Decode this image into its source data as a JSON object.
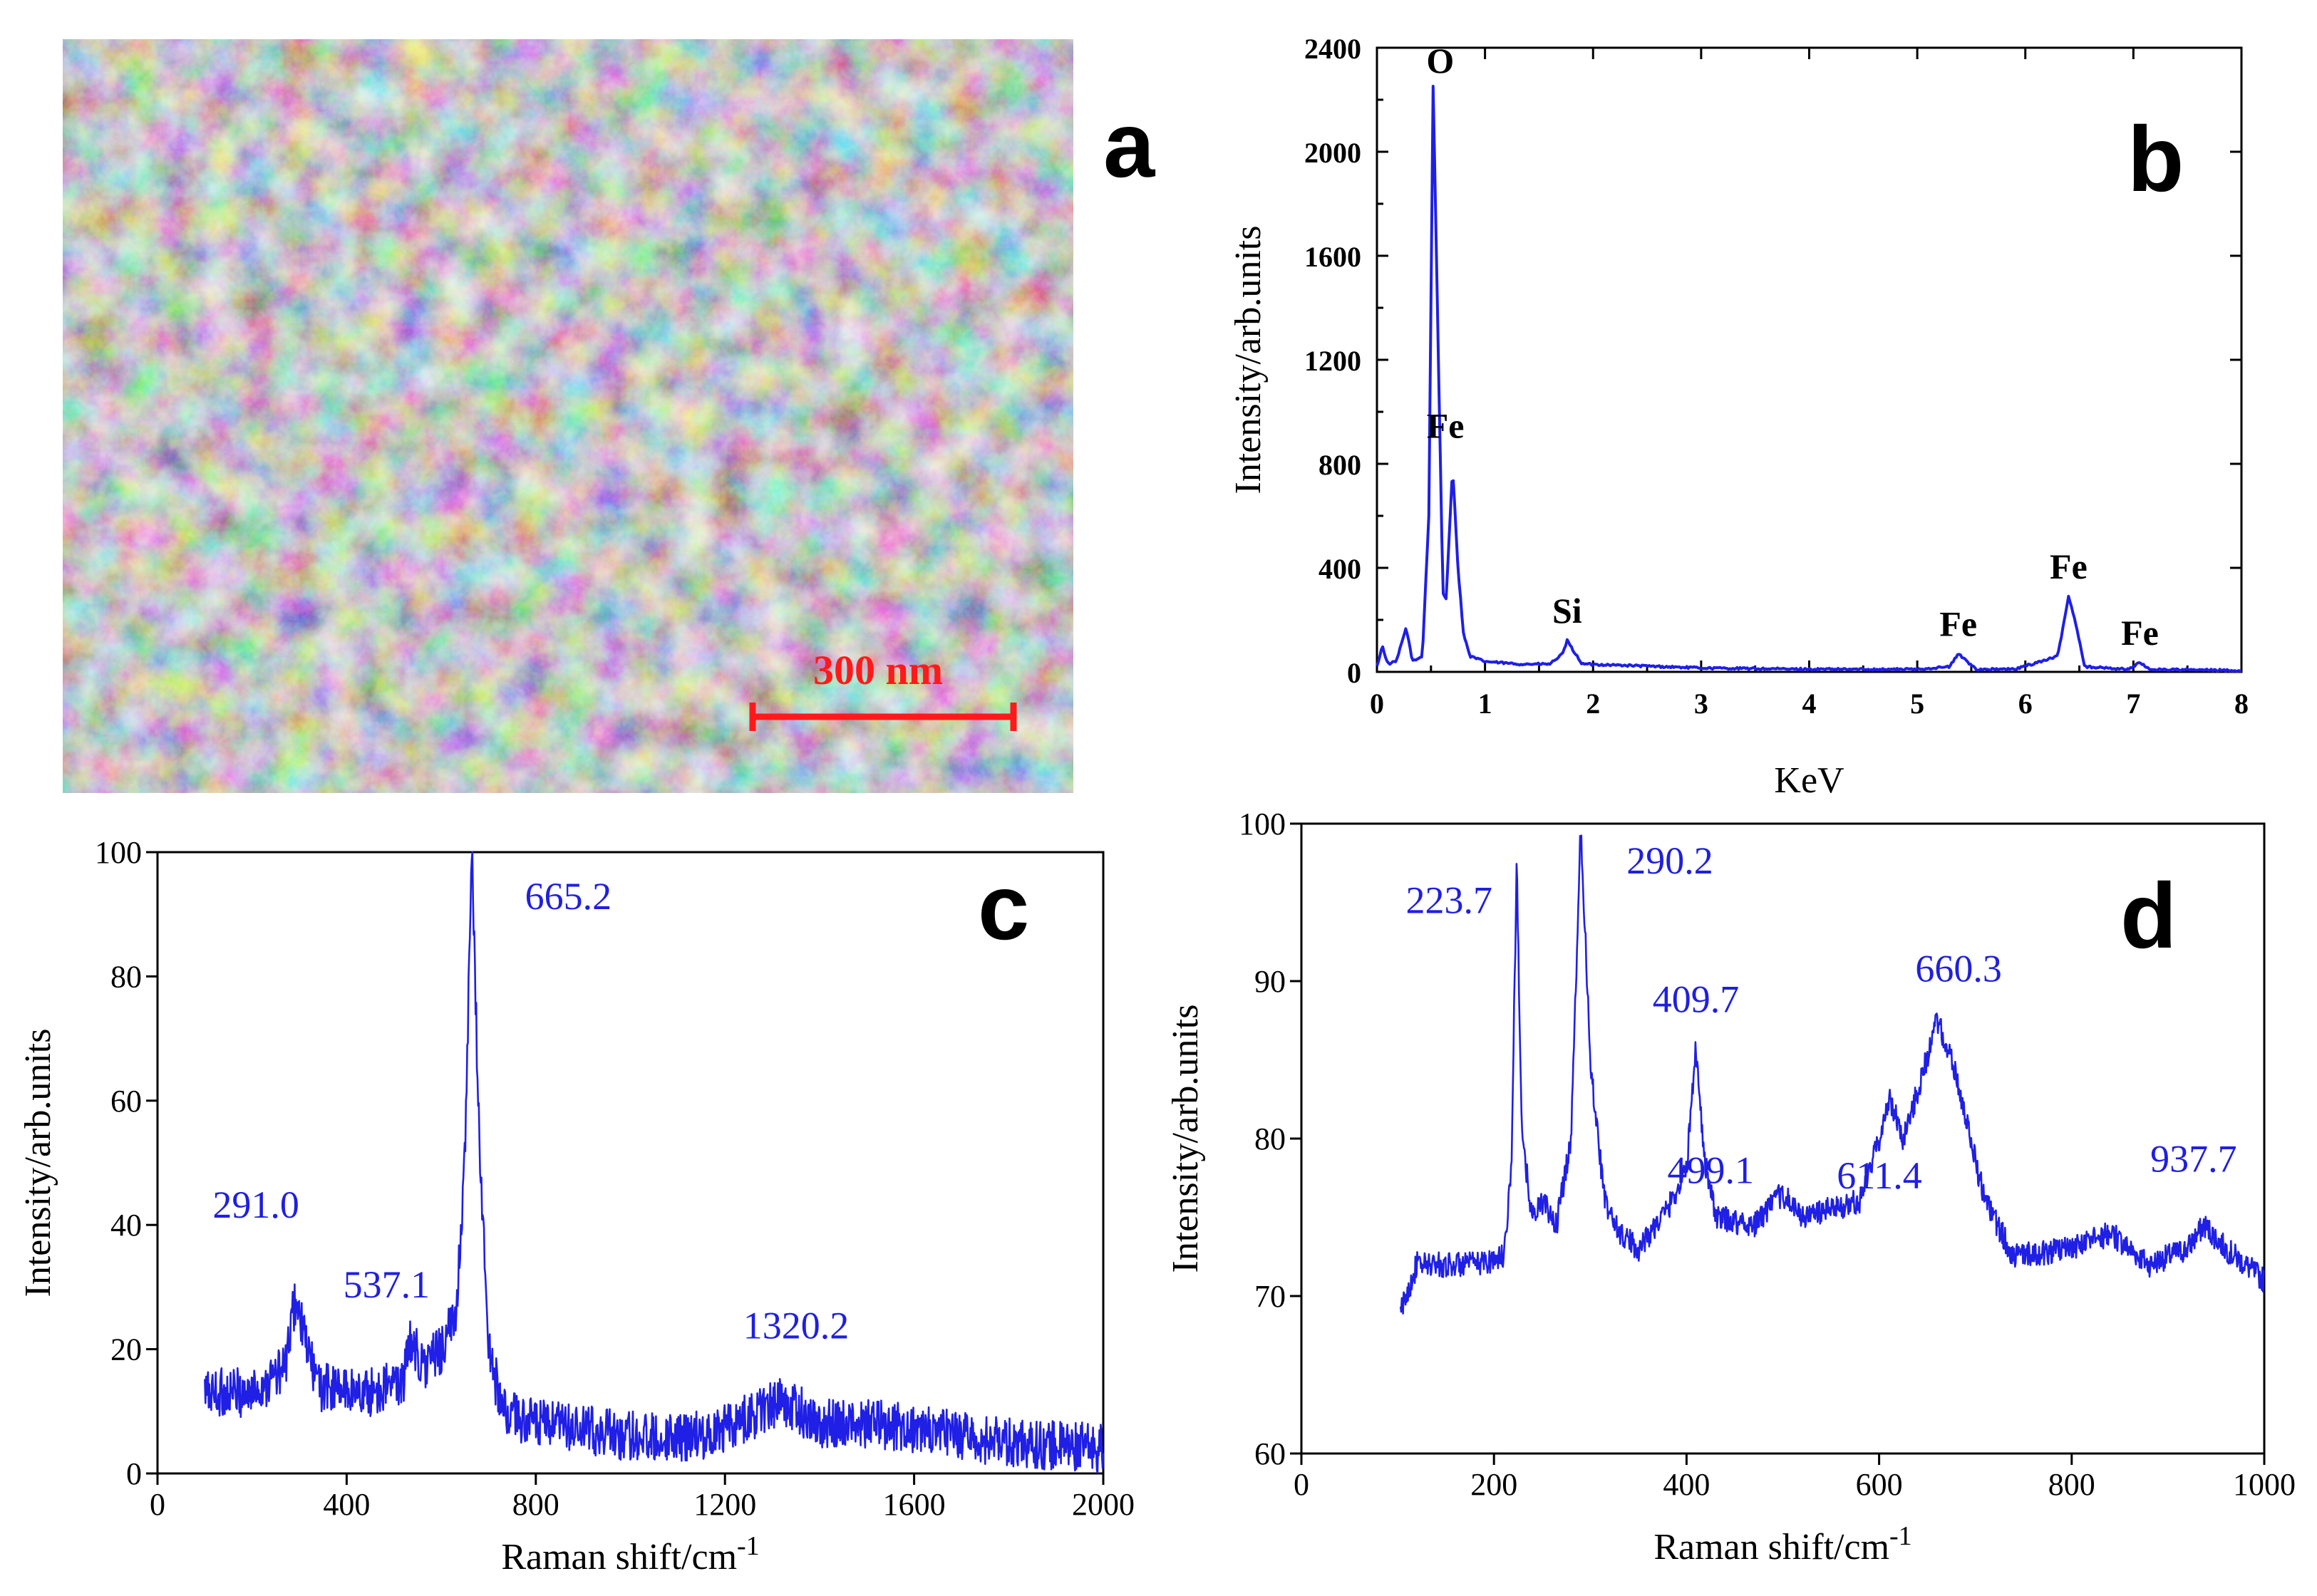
{
  "panels": {
    "a": {
      "letter": "a",
      "scale_bar": "300 nm"
    },
    "b": {
      "letter": "b"
    },
    "c": {
      "letter": "c"
    },
    "d": {
      "letter": "d"
    }
  },
  "chart_data": [
    {
      "id": "b",
      "type": "line",
      "title": "",
      "xlabel": "KeV",
      "ylabel": "Intensity/arb.units",
      "xlim": [
        0,
        8
      ],
      "ylim": [
        0,
        2400
      ],
      "xticks": [
        0,
        1,
        2,
        3,
        4,
        5,
        6,
        7,
        8
      ],
      "yticks": [
        0,
        400,
        800,
        1200,
        1600,
        2000,
        2400
      ],
      "baseline": [
        [
          0,
          20
        ],
        [
          0.05,
          100
        ],
        [
          0.1,
          30
        ],
        [
          0.18,
          40
        ],
        [
          0.27,
          170
        ],
        [
          0.33,
          40
        ],
        [
          0.42,
          60
        ],
        [
          0.48,
          600
        ],
        [
          0.52,
          2250
        ],
        [
          0.56,
          1400
        ],
        [
          0.61,
          300
        ],
        [
          0.64,
          280
        ],
        [
          0.7,
          790
        ],
        [
          0.75,
          400
        ],
        [
          0.8,
          150
        ],
        [
          0.86,
          60
        ],
        [
          1.0,
          40
        ],
        [
          1.3,
          30
        ],
        [
          1.6,
          30
        ],
        [
          1.72,
          70
        ],
        [
          1.76,
          120
        ],
        [
          1.82,
          80
        ],
        [
          1.9,
          30
        ],
        [
          2.3,
          25
        ],
        [
          3.0,
          15
        ],
        [
          4.0,
          10
        ],
        [
          5.0,
          10
        ],
        [
          5.3,
          20
        ],
        [
          5.38,
          70
        ],
        [
          5.46,
          40
        ],
        [
          5.55,
          10
        ],
        [
          5.9,
          10
        ],
        [
          6.3,
          60
        ],
        [
          6.4,
          290
        ],
        [
          6.46,
          200
        ],
        [
          6.55,
          20
        ],
        [
          6.95,
          10
        ],
        [
          7.06,
          35
        ],
        [
          7.15,
          10
        ],
        [
          8.0,
          5
        ]
      ],
      "peaks": [
        {
          "label": "O",
          "x": 0.52,
          "y": 2250
        },
        {
          "label": "Fe",
          "x": 0.7,
          "y": 790
        },
        {
          "label": "Si",
          "x": 1.76,
          "y": 120
        },
        {
          "label": "Fe",
          "x": 5.38,
          "y": 70
        },
        {
          "label": "Fe",
          "x": 6.4,
          "y": 290
        },
        {
          "label": "Fe",
          "x": 7.06,
          "y": 35
        }
      ]
    },
    {
      "id": "c",
      "type": "line",
      "title": "",
      "xlabel": "Raman shift/cm",
      "xlabel_sup": "-1",
      "ylabel": "Intensity/arb.units",
      "xlim": [
        0,
        2000
      ],
      "ylim": [
        0,
        100
      ],
      "xticks": [
        0,
        400,
        800,
        1200,
        1600,
        2000
      ],
      "yticks": [
        0,
        20,
        40,
        60,
        80,
        100
      ],
      "x_range": [
        100,
        2000
      ],
      "baseline": [
        [
          100,
          13
        ],
        [
          200,
          13
        ],
        [
          270,
          17
        ],
        [
          291,
          28
        ],
        [
          310,
          22
        ],
        [
          340,
          14
        ],
        [
          450,
          13
        ],
        [
          520,
          15
        ],
        [
          537,
          22
        ],
        [
          560,
          17
        ],
        [
          600,
          20
        ],
        [
          630,
          25
        ],
        [
          650,
          50
        ],
        [
          665,
          100
        ],
        [
          680,
          55
        ],
        [
          700,
          20
        ],
        [
          730,
          10
        ],
        [
          800,
          8
        ],
        [
          1000,
          6
        ],
        [
          1150,
          6
        ],
        [
          1250,
          9
        ],
        [
          1320,
          12
        ],
        [
          1400,
          8
        ],
        [
          1530,
          8
        ],
        [
          1600,
          7
        ],
        [
          1800,
          5
        ],
        [
          2000,
          4
        ]
      ],
      "noise_amplitude": 4,
      "peaks": [
        {
          "label": "291.0",
          "x": 291.0,
          "y": 28
        },
        {
          "label": "537.1",
          "x": 537.1,
          "y": 22
        },
        {
          "label": "665.2",
          "x": 665.2,
          "y": 100
        },
        {
          "label": "1320.2",
          "x": 1320.2,
          "y": 12
        }
      ]
    },
    {
      "id": "d",
      "type": "line",
      "title": "",
      "xlabel": "Raman shift/cm",
      "xlabel_sup": "-1",
      "ylabel": "Intensity/arb.units",
      "xlim": [
        0,
        1000
      ],
      "ylim": [
        60,
        100
      ],
      "xticks": [
        0,
        200,
        400,
        600,
        800,
        1000
      ],
      "yticks": [
        60,
        70,
        80,
        90,
        100
      ],
      "x_range": [
        103,
        1000
      ],
      "baseline": [
        [
          103,
          69
        ],
        [
          120,
          72
        ],
        [
          180,
          72
        ],
        [
          210,
          72.5
        ],
        [
          218,
          78
        ],
        [
          223.7,
          97.5
        ],
        [
          229,
          80
        ],
        [
          240,
          75
        ],
        [
          250,
          76
        ],
        [
          265,
          74.5
        ],
        [
          280,
          80
        ],
        [
          290.2,
          100
        ],
        [
          300,
          85
        ],
        [
          315,
          76
        ],
        [
          330,
          74
        ],
        [
          350,
          73
        ],
        [
          380,
          75.5
        ],
        [
          400,
          78
        ],
        [
          409.7,
          86
        ],
        [
          418,
          79
        ],
        [
          430,
          75
        ],
        [
          470,
          74.5
        ],
        [
          499.1,
          76.5
        ],
        [
          520,
          75
        ],
        [
          580,
          76
        ],
        [
          600,
          80
        ],
        [
          611.4,
          82.5
        ],
        [
          625,
          80
        ],
        [
          640,
          83
        ],
        [
          660.3,
          87.5
        ],
        [
          680,
          84
        ],
        [
          710,
          76
        ],
        [
          740,
          72.5
        ],
        [
          800,
          73
        ],
        [
          840,
          74
        ],
        [
          880,
          72
        ],
        [
          920,
          73
        ],
        [
          937.7,
          74.5
        ],
        [
          960,
          73
        ],
        [
          1000,
          71
        ]
      ],
      "noise_amplitude": 0.8,
      "peaks": [
        {
          "label": "223.7",
          "x": 223.7,
          "y": 97.5
        },
        {
          "label": "290.2",
          "x": 290.2,
          "y": 100
        },
        {
          "label": "409.7",
          "x": 409.7,
          "y": 86
        },
        {
          "label": "499.1",
          "x": 499.1,
          "y": 76.5
        },
        {
          "label": "611.4",
          "x": 611.4,
          "y": 82.5
        },
        {
          "label": "660.3",
          "x": 660.3,
          "y": 87.5
        },
        {
          "label": "937.7",
          "x": 937.7,
          "y": 74.5
        }
      ]
    }
  ]
}
